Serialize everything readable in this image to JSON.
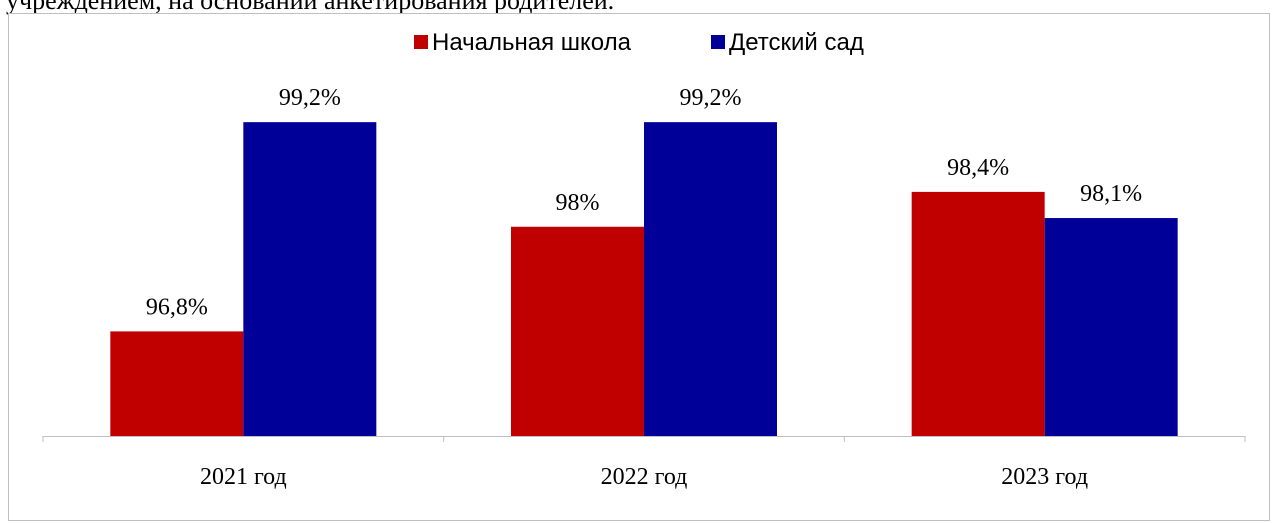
{
  "header_text": "учреждением, на основании анкетирования родителей.",
  "chart_data": {
    "type": "bar",
    "categories": [
      "2021 год",
      "2022 год",
      "2023 год"
    ],
    "series": [
      {
        "name": "Начальная школа",
        "values": [
          96.8,
          98.0,
          98.4
        ],
        "labels": [
          "96,8%",
          "98%",
          "98,4%"
        ],
        "color": "#c00000"
      },
      {
        "name": "Детский сад",
        "values": [
          99.2,
          99.2,
          98.1
        ],
        "labels": [
          "99,2%",
          "99,2%",
          "98,1%"
        ],
        "color": "#000099"
      }
    ],
    "ylim": [
      95.6,
      99.5
    ],
    "grid": false,
    "legend_position": "top-center"
  }
}
